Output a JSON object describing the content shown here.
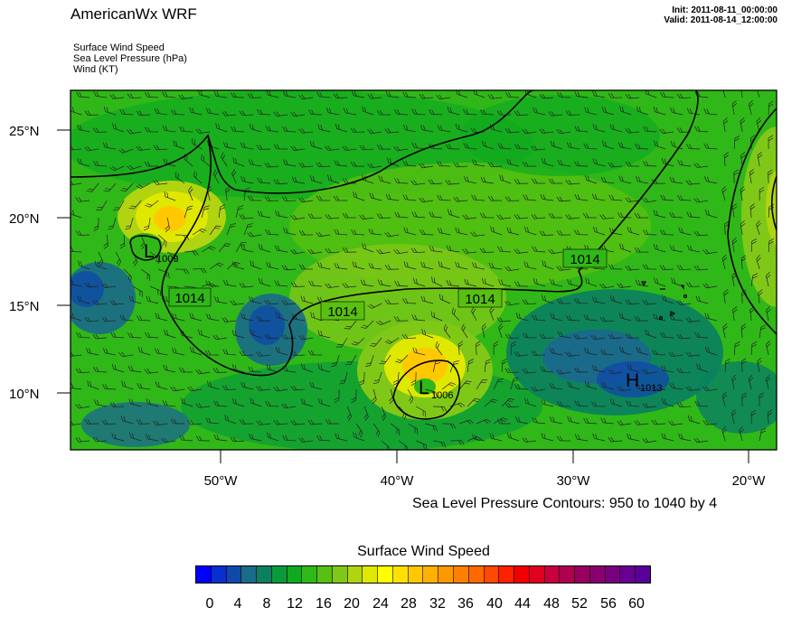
{
  "header": {
    "title": "AmericanWx WRF",
    "init": "Init: 2011-08-11_00:00:00",
    "valid": "Valid: 2011-08-14_12:00:00",
    "fields": [
      "Surface Wind Speed",
      "Sea Level Pressure   (hPa)",
      "Wind   (KT)"
    ]
  },
  "axes": {
    "lat_labels": [
      "25°N",
      "20°N",
      "15°N",
      "10°N"
    ],
    "lon_labels": [
      "50°W",
      "40°W",
      "30°W",
      "20°W"
    ]
  },
  "contour_labels": [
    "1014",
    "1014",
    "1014",
    "1014"
  ],
  "pressure_centers": [
    {
      "type": "L",
      "value": "1009"
    },
    {
      "type": "L",
      "value": "1006"
    },
    {
      "type": "H",
      "value": "1013"
    }
  ],
  "contour_note": "Sea Level Pressure Contours: 950 to 1040 by 4",
  "colorbar": {
    "title": "Surface Wind Speed",
    "labels": [
      "0",
      "4",
      "8",
      "12",
      "16",
      "20",
      "24",
      "28",
      "32",
      "36",
      "40",
      "44",
      "48",
      "52",
      "56",
      "60"
    ],
    "colors": [
      "#0000ff",
      "#0a2fd0",
      "#0f4aa8",
      "#1a6a8a",
      "#0a8060",
      "#0a9a3a",
      "#10aa20",
      "#30b818",
      "#58c010",
      "#80c818",
      "#b0d410",
      "#e0e800",
      "#ffff00",
      "#ffe000",
      "#ffc800",
      "#ffb000",
      "#ff9800",
      "#ff8000",
      "#ff6800",
      "#ff4800",
      "#ff2000",
      "#f00000",
      "#e00020",
      "#c80040",
      "#b00050",
      "#980060",
      "#880070",
      "#780080",
      "#680090",
      "#580098"
    ]
  }
}
